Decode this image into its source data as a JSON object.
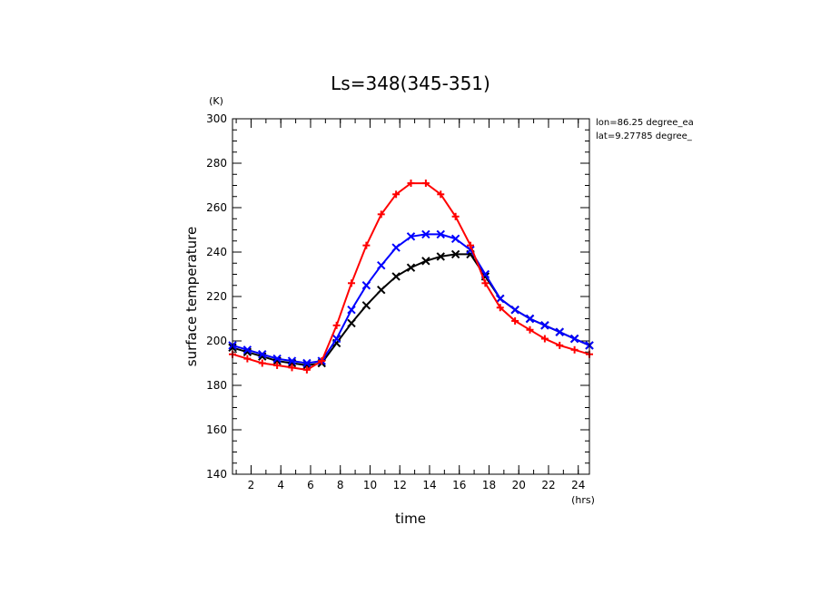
{
  "chart_data": {
    "type": "line",
    "title": "Ls=348(345-351)",
    "xlabel": "time",
    "ylabel": "surface temperature",
    "x_unit": "(hrs)",
    "y_unit": "(K)",
    "xlim": [
      0.75,
      24.75
    ],
    "ylim": [
      140,
      300
    ],
    "x_ticks": [
      2,
      4,
      6,
      8,
      10,
      12,
      14,
      16,
      18,
      20,
      22,
      24
    ],
    "y_ticks": [
      140,
      160,
      180,
      200,
      220,
      240,
      260,
      280,
      300
    ],
    "annotations": [
      "lon=86.25 degree_ea",
      "lat=9.27785 degree_"
    ],
    "legend": "none",
    "x": [
      0.75,
      1.75,
      2.75,
      3.75,
      4.75,
      5.75,
      6.75,
      7.75,
      8.75,
      9.75,
      10.75,
      11.75,
      12.75,
      13.75,
      14.75,
      15.75,
      16.75,
      17.75,
      18.75,
      19.75,
      20.75,
      21.75,
      22.75,
      23.75,
      24.75
    ],
    "series": [
      {
        "color": "#ff0000",
        "marker": "plus",
        "values": [
          194,
          192,
          190,
          189,
          188,
          187,
          191,
          207,
          226,
          243,
          257,
          266,
          271,
          271,
          266,
          256,
          243,
          226,
          215,
          209,
          205,
          201,
          198,
          196,
          194
        ]
      },
      {
        "color": "#0000ff",
        "marker": "cross",
        "values": [
          198,
          196,
          194,
          192,
          191,
          190,
          191,
          201,
          214,
          225,
          234,
          242,
          247,
          248,
          248,
          246,
          241,
          230,
          219,
          214,
          210,
          207,
          204,
          201,
          198
        ]
      },
      {
        "color": "#000000",
        "marker": "cross",
        "values": [
          197,
          195,
          193,
          191,
          190,
          189,
          190,
          199,
          208,
          216,
          223,
          229,
          233,
          236,
          238,
          239,
          239,
          229,
          219,
          214,
          210,
          207,
          204,
          201,
          198
        ]
      }
    ]
  }
}
